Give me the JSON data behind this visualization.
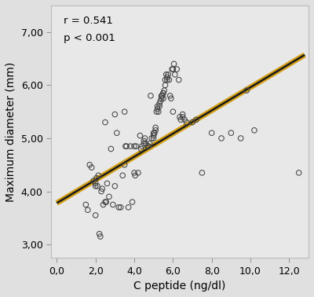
{
  "xlabel": "C peptide (ng/dl)",
  "ylabel": "Maximum diameter (mm)",
  "annotation_line1": "r = 0.541",
  "annotation_line2": "p < 0.001",
  "xlim": [
    -0.3,
    13.0
  ],
  "ylim": [
    2.75,
    7.5
  ],
  "xticks": [
    0.0,
    2.0,
    4.0,
    6.0,
    8.0,
    10.0,
    12.0
  ],
  "yticks": [
    3.0,
    4.0,
    5.0,
    6.0,
    7.0
  ],
  "xtick_labels": [
    "0,0",
    "2,0",
    "4,0",
    "6,0",
    "8,0",
    "10,0",
    "12,0"
  ],
  "ytick_labels": [
    "3,00",
    "4,00",
    "5,00",
    "6,00",
    "7,00"
  ],
  "bg_color": "#e8e8e8",
  "fig_color": "#e0e0e0",
  "scatter_edge_color": "#444444",
  "line_yellow": "#d4a017",
  "line_dark": "#1a1a1a",
  "regression_x0": 0.0,
  "regression_x1": 12.8,
  "regression_y0": 3.78,
  "regression_y1": 6.57,
  "scatter_x": [
    1.7,
    1.8,
    1.9,
    2.0,
    2.0,
    2.05,
    2.1,
    2.15,
    2.2,
    2.25,
    2.3,
    2.35,
    2.4,
    2.5,
    2.55,
    2.6,
    2.7,
    2.8,
    2.9,
    3.0,
    3.1,
    3.2,
    3.3,
    3.4,
    3.5,
    3.55,
    3.6,
    3.7,
    3.8,
    3.9,
    4.0,
    4.05,
    4.1,
    4.2,
    4.3,
    4.35,
    4.4,
    4.5,
    4.55,
    4.6,
    4.7,
    4.75,
    4.8,
    4.85,
    4.9,
    5.0,
    5.0,
    5.05,
    5.1,
    5.1,
    5.15,
    5.2,
    5.2,
    5.25,
    5.3,
    5.3,
    5.35,
    5.4,
    5.4,
    5.45,
    5.5,
    5.5,
    5.5,
    5.55,
    5.6,
    5.6,
    5.65,
    5.7,
    5.7,
    5.75,
    5.8,
    5.85,
    5.9,
    5.95,
    6.0,
    6.05,
    6.1,
    6.2,
    6.3,
    6.35,
    6.4,
    6.5,
    6.6,
    6.7,
    7.0,
    7.2,
    7.5,
    8.0,
    8.5,
    9.0,
    9.5,
    9.8,
    10.2,
    12.5,
    1.5,
    1.6,
    2.0,
    2.5,
    3.0,
    3.5,
    4.0,
    4.5,
    5.0,
    6.0,
    6.5
  ],
  "scatter_y": [
    4.5,
    4.45,
    4.2,
    4.1,
    4.15,
    4.25,
    4.1,
    4.3,
    3.2,
    3.15,
    4.0,
    4.05,
    3.75,
    3.8,
    3.8,
    4.15,
    3.9,
    4.8,
    3.75,
    4.1,
    5.1,
    3.7,
    3.7,
    4.3,
    4.5,
    4.85,
    4.85,
    3.7,
    4.85,
    3.8,
    4.35,
    4.3,
    4.85,
    4.35,
    5.05,
    4.8,
    4.85,
    4.95,
    5.0,
    4.9,
    4.85,
    4.85,
    4.9,
    5.8,
    5.0,
    5.0,
    5.1,
    5.1,
    5.15,
    5.2,
    5.5,
    5.55,
    5.6,
    5.5,
    5.6,
    5.65,
    5.7,
    5.75,
    5.8,
    5.8,
    5.75,
    5.85,
    5.85,
    5.9,
    6.0,
    6.1,
    6.2,
    6.1,
    6.15,
    6.2,
    6.1,
    5.8,
    5.75,
    6.3,
    6.3,
    6.4,
    6.2,
    6.3,
    6.1,
    5.4,
    5.35,
    5.4,
    5.35,
    5.3,
    5.3,
    5.35,
    4.35,
    5.1,
    5.0,
    5.1,
    5.0,
    5.9,
    5.15,
    4.35,
    3.75,
    3.65,
    3.55,
    5.3,
    5.45,
    5.5,
    4.85,
    4.9,
    5.05,
    5.5,
    5.45
  ]
}
